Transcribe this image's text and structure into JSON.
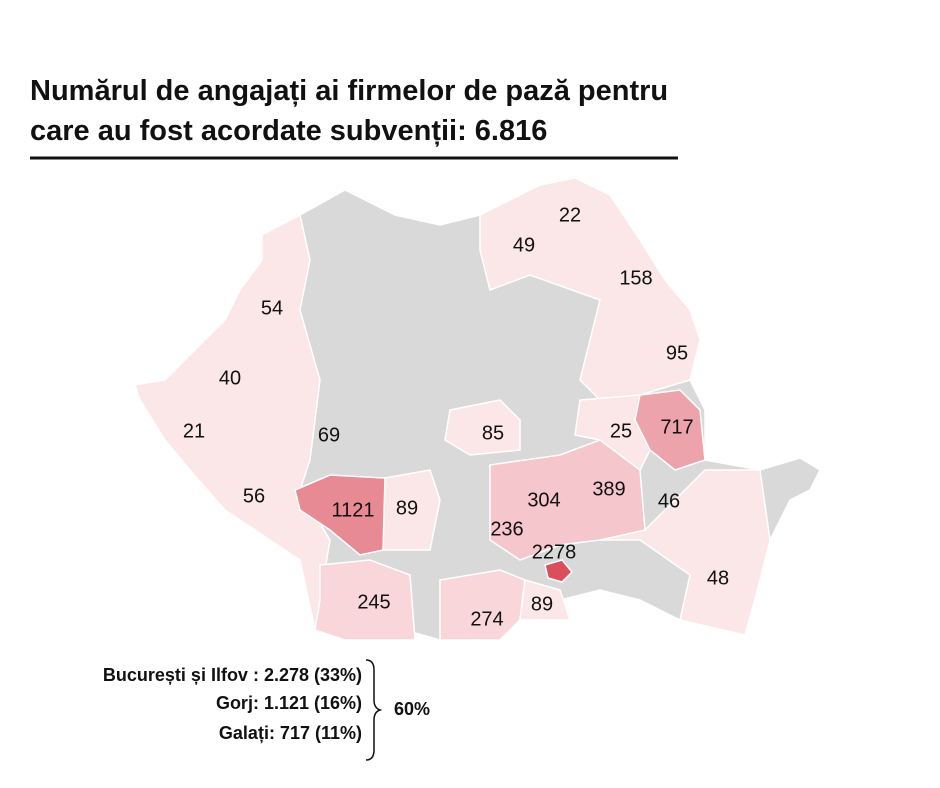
{
  "title": [
    "Numărul de angajați ai firmelor de pază pentru",
    "care au fost acordate subvenții: 6.816"
  ],
  "map_labels": [
    "22",
    "49",
    "158",
    "54",
    "95",
    "40",
    "21",
    "69",
    "85",
    "25",
    "717",
    "56",
    "1121",
    "89",
    "304",
    "389",
    "46",
    "236",
    "2278",
    "48",
    "245",
    "274",
    "89"
  ],
  "notes": [
    "București și Ilfov : 2.278 (33%)",
    "Gorj: 1.121 (16%)",
    "Galați: 717 (11%)"
  ],
  "notes_total": "60%"
}
